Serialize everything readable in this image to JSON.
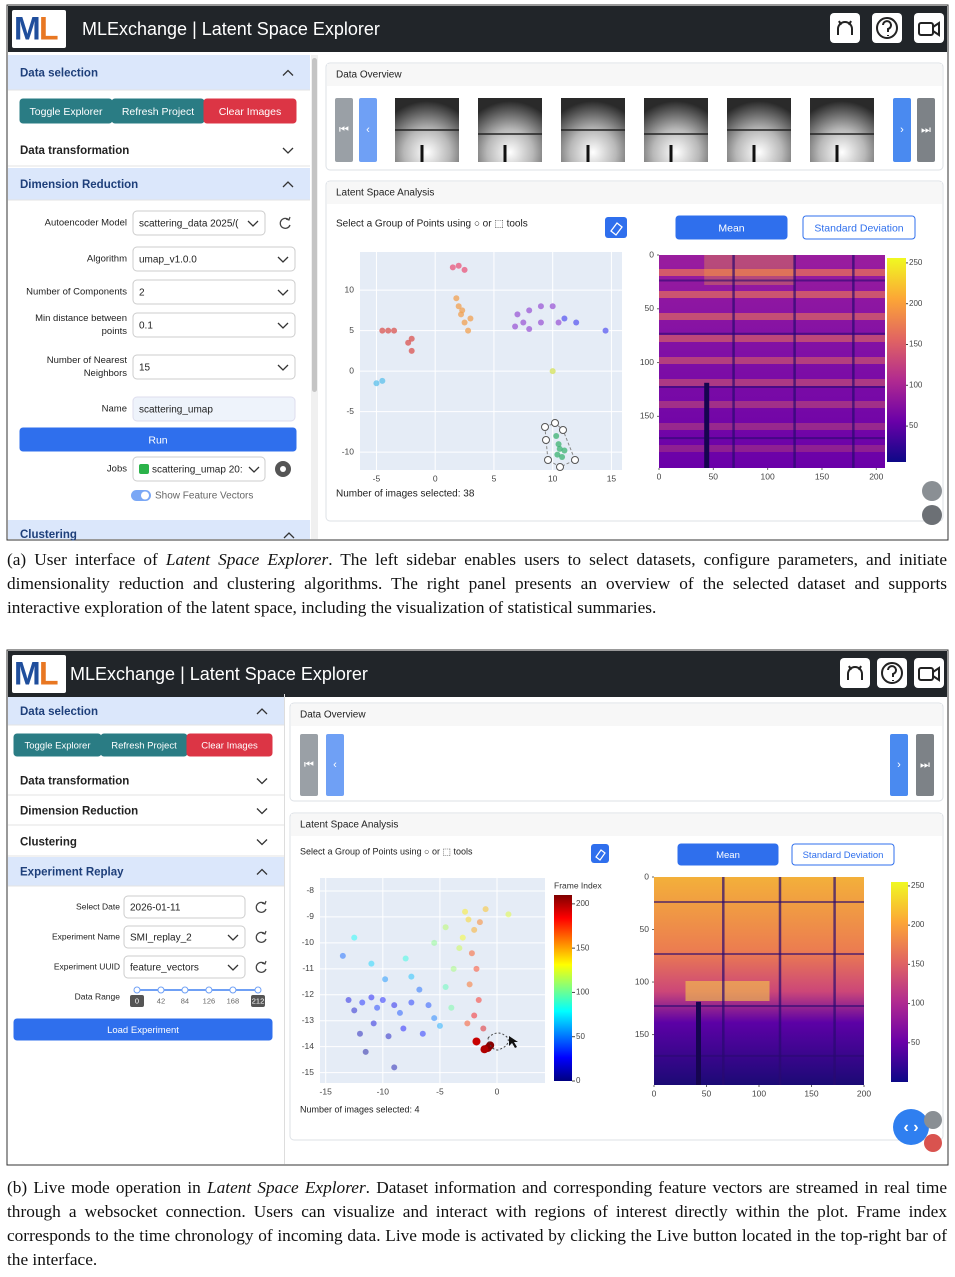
{
  "panel_a": {
    "header": {
      "logo": [
        "M",
        "L"
      ],
      "title": "MLExchange | Latent Space Explorer"
    },
    "sidebar": {
      "data_selection": "Data selection",
      "buttons": [
        "Toggle Explorer",
        "Refresh Project",
        "Clear Images"
      ],
      "data_transformation": "Data transformation",
      "dimension_reduction": "Dimension Reduction",
      "fields": [
        {
          "label": [
            "Autoencoder Model"
          ],
          "value": "scattering_data 2025/("
        },
        {
          "label": [
            "Algorithm"
          ],
          "value": "umap_v1.0.0"
        },
        {
          "label": [
            "Number of Components"
          ],
          "value": "2"
        },
        {
          "label": [
            "Min distance between",
            "points"
          ],
          "value": "0.1"
        },
        {
          "label": [
            "Number of Nearest",
            "Neighbors"
          ],
          "value": "15"
        },
        {
          "label": [
            "Name"
          ],
          "value": "scattering_umap"
        }
      ],
      "run": "Run",
      "jobs_label": "Jobs",
      "jobs_value": "scattering_umap 20:",
      "switch": "Show Feature Vectors",
      "clustering": "Clustering"
    },
    "overview": "Data Overview",
    "latent": {
      "title": "Latent Space Analysis",
      "instruction": "Select a Group of Points using ○ or ⬚ tools",
      "buttons": [
        "Mean",
        "Standard Deviation"
      ],
      "selected": "Number of images selected: 38"
    },
    "scatter": {
      "type": "scatter",
      "xlim": [
        -6.4,
        15.9
      ],
      "ylim": [
        -12.2,
        14.7
      ],
      "xticks": [
        -5,
        0,
        5,
        10,
        15
      ],
      "yticks": [
        -10,
        -5,
        0,
        5,
        10
      ],
      "series": [
        {
          "color": "#d9534f",
          "x": [
            -4.5,
            -4,
            -3.5,
            -2,
            -2.3,
            -2
          ],
          "y": [
            5,
            5,
            5,
            4,
            3.5,
            2.5
          ]
        },
        {
          "color": "#e8557a",
          "x": [
            1.5,
            2,
            2.5
          ],
          "y": [
            12.8,
            13,
            12.5
          ]
        },
        {
          "color": "#f0a050",
          "x": [
            1.8,
            2,
            2.2,
            2.5,
            2.8,
            2.3,
            3
          ],
          "y": [
            9,
            8,
            7,
            6,
            5,
            7.5,
            6.5
          ]
        },
        {
          "color": "#9b59d6",
          "x": [
            7,
            8,
            9,
            10,
            7.5,
            6.8,
            8,
            9,
            10.5
          ],
          "y": [
            7,
            7.5,
            8,
            8,
            6,
            5.5,
            5.2,
            6,
            6
          ]
        },
        {
          "color": "#5b5bf0",
          "x": [
            11,
            12,
            14.5
          ],
          "y": [
            6.5,
            6,
            5
          ]
        },
        {
          "color": "#5bc0eb",
          "x": [
            -5,
            -4.5
          ],
          "y": [
            -1.5,
            -1.2
          ]
        },
        {
          "color": "#d4e157",
          "x": [
            10
          ],
          "y": [
            0
          ]
        },
        {
          "color": "#3cb371",
          "x": [
            10.3,
            10.5,
            10.6,
            11,
            10.4,
            10.8
          ],
          "y": [
            -8,
            -9,
            -9.6,
            -9.8,
            -10.3,
            -10.6
          ]
        }
      ]
    },
    "heatmap": {
      "type": "heatmap",
      "xlim": [
        0,
        208
      ],
      "ylim": [
        0,
        198
      ],
      "xticks": [
        0,
        50,
        100,
        150,
        200
      ],
      "yticks": [
        0,
        50,
        100,
        150
      ],
      "colorbar": {
        "lim": [
          6,
          256
        ],
        "ticks": [
          50,
          100,
          150,
          200,
          250
        ]
      }
    }
  },
  "panel_b": {
    "header": {
      "logo": [
        "M",
        "L"
      ],
      "title": "MLExchange | Latent Space Explorer"
    },
    "sidebar": {
      "data_selection": "Data selection",
      "buttons": [
        "Toggle Explorer",
        "Refresh Project",
        "Clear Images"
      ],
      "sections": [
        "Data transformation",
        "Dimension Reduction",
        "Clustering"
      ],
      "replay": "Experiment Replay",
      "fields": [
        {
          "label": "Select Date",
          "value": "2026-01-11"
        },
        {
          "label": "Experiment Name",
          "value": "SMI_replay_2"
        },
        {
          "label": "Experiment UUID",
          "value": "feature_vectors"
        }
      ],
      "range": {
        "label": "Data Range",
        "marks": [
          0,
          42,
          84,
          126,
          168,
          212
        ]
      },
      "load": "Load Experiment"
    },
    "overview": "Data Overview",
    "latent": {
      "title": "Latent Space Analysis",
      "instruction": "Select a Group of Points using ○ or ⬚ tools",
      "buttons": [
        "Mean",
        "Standard Deviation"
      ],
      "selected": "Number of images selected: 4"
    },
    "scatter": {
      "type": "scatter",
      "xlim": [
        -15.5,
        4.2
      ],
      "ylim": [
        -15.4,
        -7.5
      ],
      "xticks": [
        -15,
        -10,
        -5,
        0
      ],
      "yticks": [
        -15,
        -14,
        -13,
        -12,
        -11,
        -10,
        -9,
        -8
      ],
      "colorbar": {
        "title": "Frame Index",
        "lim": [
          0,
          210
        ],
        "ticks": [
          0,
          50,
          100,
          150,
          200
        ]
      },
      "series": [
        {
          "x": [
            -13,
            -12.5,
            -11.8,
            -11,
            -10.5,
            -10,
            -9,
            -8.5,
            -7.5,
            -6.8,
            -6,
            -5.5,
            -12,
            -10.8,
            -9.5,
            -8.2,
            -6.5,
            -5,
            -11,
            -9.8,
            -7.5,
            -12.5,
            -4.5,
            -4,
            -3.8,
            -3.3,
            -2.5,
            -2,
            -1.5,
            -2.8,
            -1,
            -3,
            -2.2,
            -1.8,
            -2.4,
            -1.6,
            -2,
            -1.2,
            -1.8,
            -0.8,
            -0.6,
            -1.1,
            -2.6,
            -13.5,
            -8,
            -5.5,
            -4.5,
            1,
            -11.5,
            -9
          ],
          "y": [
            -12.2,
            -12.6,
            -12.3,
            -12.1,
            -12.5,
            -12.2,
            -12.4,
            -12.7,
            -12.3,
            -11.8,
            -12.4,
            -12.9,
            -13.5,
            -13.1,
            -13.6,
            -13.3,
            -13.5,
            -13.2,
            -10.8,
            -11.4,
            -11.3,
            -9.8,
            -11.7,
            -12.5,
            -11,
            -10.2,
            -9.1,
            -9.5,
            -9.2,
            -8.8,
            -8.7,
            -9.8,
            -10.4,
            -11,
            -11.6,
            -12.2,
            -12.8,
            -13.3,
            -13.8,
            -14.05,
            -13.95,
            -14.1,
            -13.1,
            -10.5,
            -10.6,
            -10,
            -9.4,
            -8.9,
            -14.2,
            -14.8
          ],
          "frame": [
            20,
            15,
            30,
            25,
            35,
            28,
            22,
            40,
            32,
            45,
            38,
            50,
            10,
            18,
            12,
            26,
            30,
            60,
            70,
            55,
            65,
            80,
            95,
            100,
            110,
            120,
            140,
            150,
            160,
            135,
            145,
            130,
            170,
            175,
            165,
            180,
            185,
            190,
            195,
            205,
            208,
            200,
            172,
            45,
            85,
            105,
            115,
            125,
            5,
            8
          ]
        }
      ]
    },
    "heatmap": {
      "type": "heatmap",
      "xlim": [
        0,
        200
      ],
      "ylim": [
        0,
        198
      ],
      "xticks": [
        0,
        50,
        100,
        150,
        200
      ],
      "yticks": [
        0,
        50,
        100,
        150
      ],
      "colorbar": {
        "lim": [
          0,
          255
        ],
        "ticks": [
          50,
          100,
          150,
          200,
          250
        ]
      }
    }
  },
  "captions": [
    {
      "parts": [
        {
          "text": "(a) User interface of "
        },
        {
          "text": "Latent Space Explorer",
          "italic": true
        },
        {
          "text": ". The left sidebar enables users to select datasets, configure parameters, and initiate dimensionality reduction and clustering algorithms. The right panel presents an overview of the selected dataset and supports interactive exploration of the latent space, including the visualization of statistical summaries."
        }
      ]
    },
    {
      "parts": [
        {
          "text": "(b) Live mode operation in "
        },
        {
          "text": "Latent Space Explorer",
          "italic": true
        },
        {
          "text": ". Dataset information and corresponding feature vectors are streamed in real time through a websocket connection. Users can visualize and interact with regions of interest directly within the plot. Frame index corresponds to the time chronology of incoming data. Live mode is activated by clicking the Live button located in the top-right bar of the interface."
        }
      ]
    }
  ]
}
